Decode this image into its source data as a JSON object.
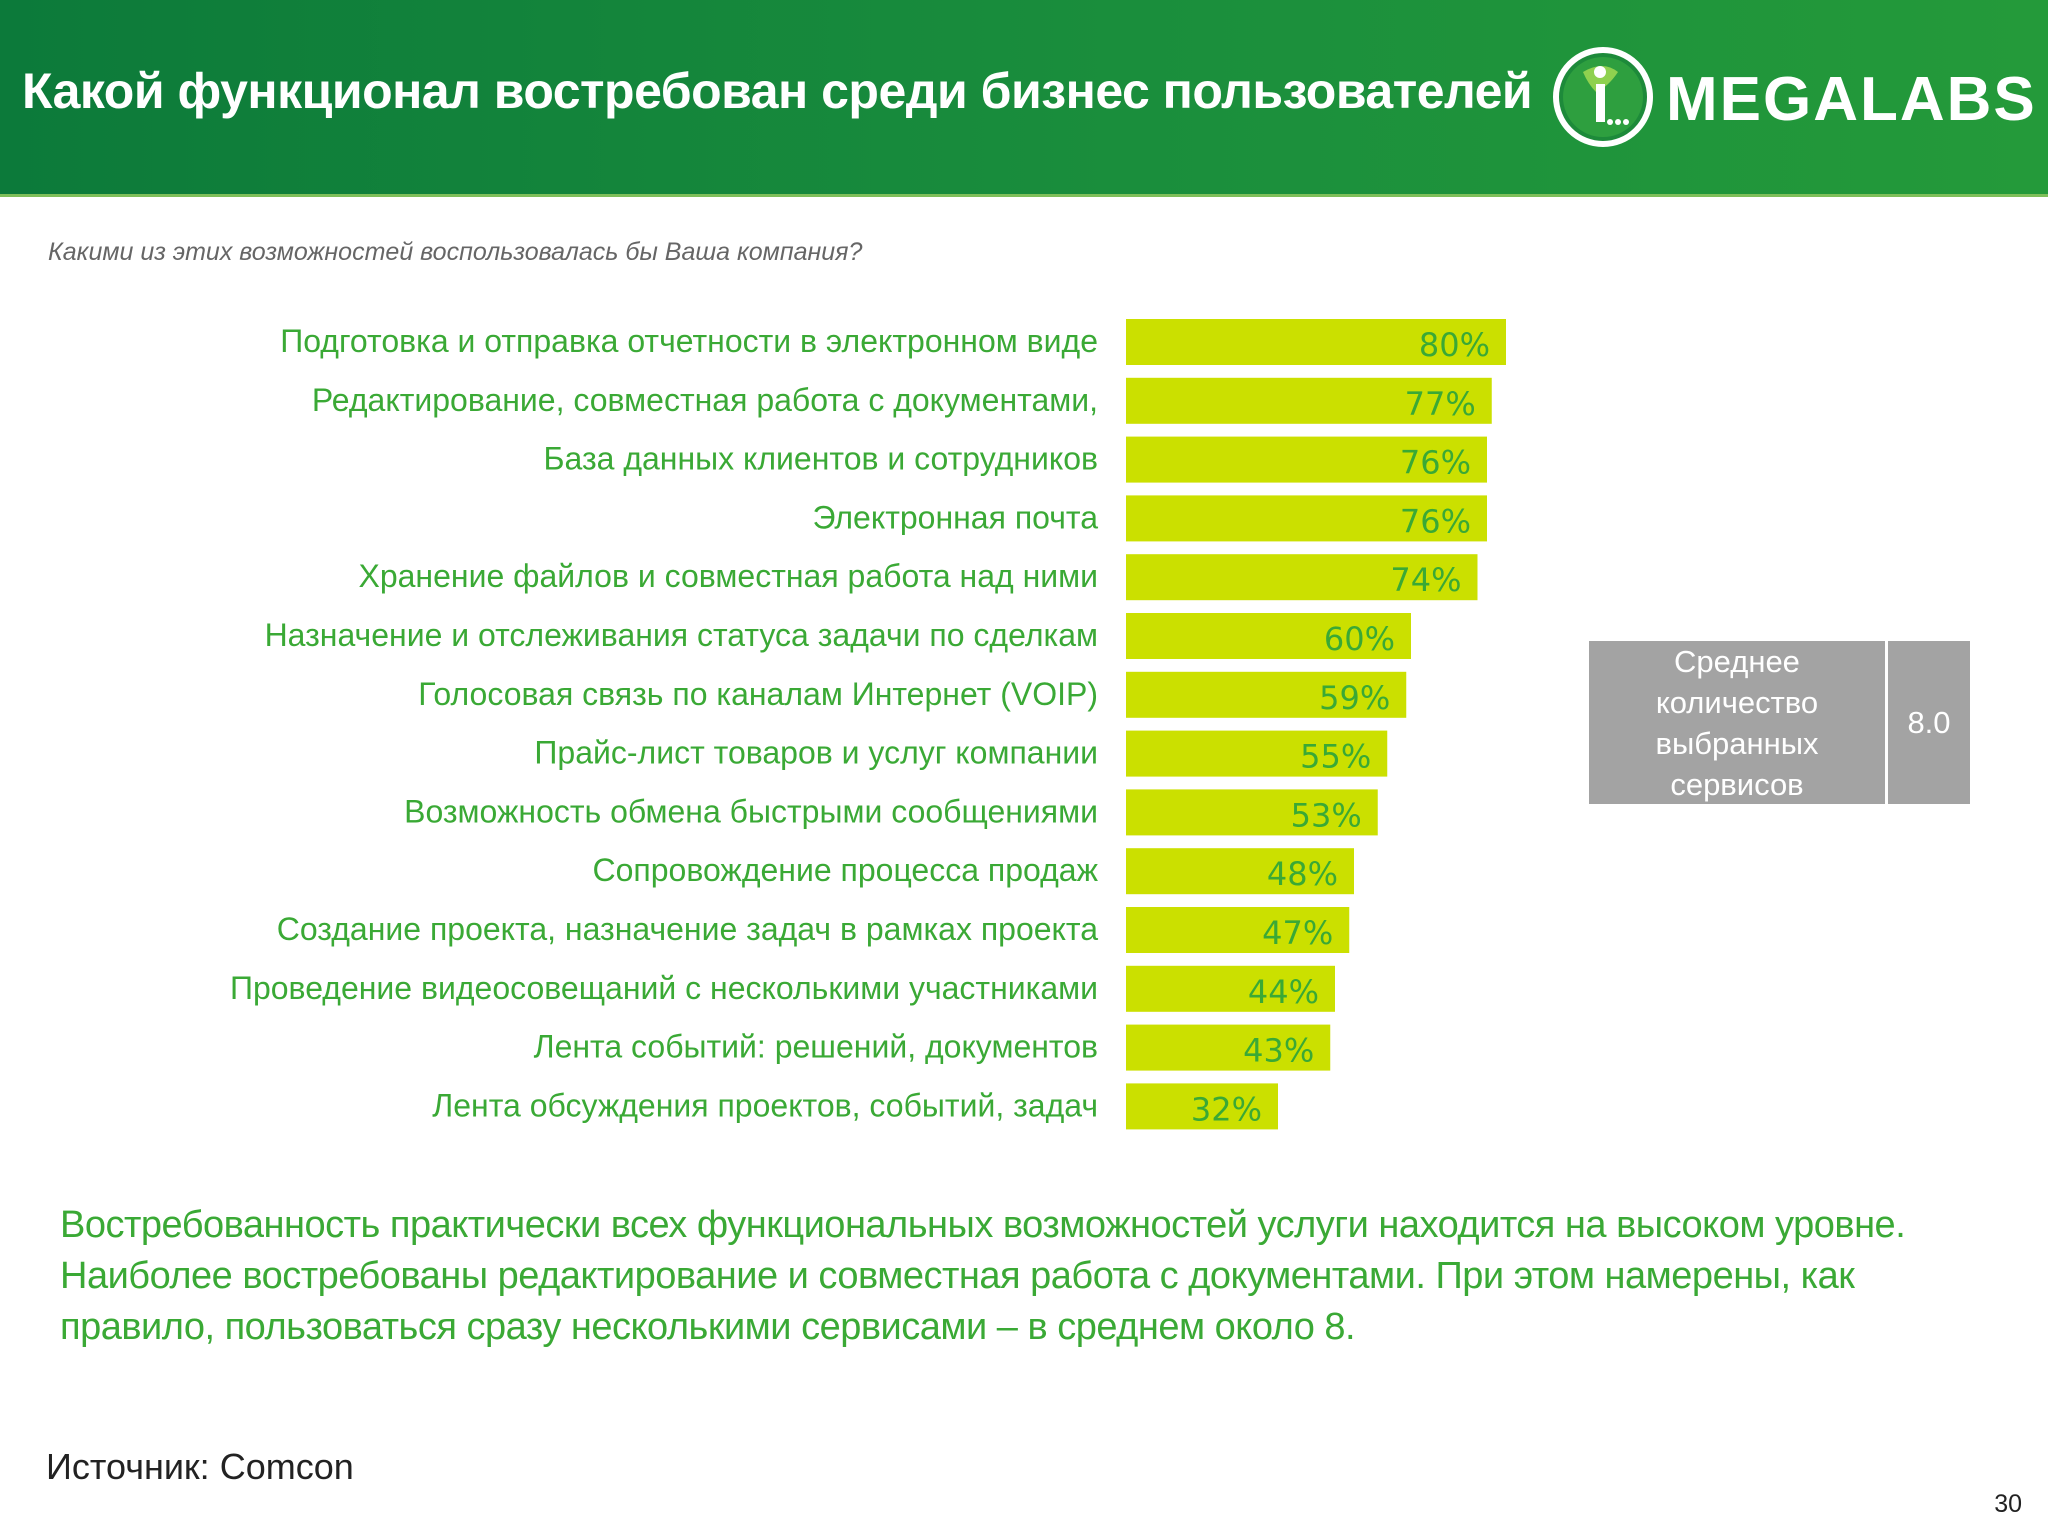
{
  "header": {
    "title": "Какой функционал востребован среди бизнес пользователей",
    "logo_text": "MEGALABS"
  },
  "subtitle": "Какими из этих возможностей воспользовалась бы Ваша компания?",
  "chart_data": {
    "type": "bar",
    "orientation": "horizontal",
    "categories": [
      "Подготовка и отправка отчетности в электронном виде",
      "Редактирование, совместная работа с документами,",
      "База данных клиентов и сотрудников",
      "Электронная почта",
      "Хранение файлов и совместная работа над ними",
      "Назначение и отслеживания статуса задачи по сделкам",
      "Голосовая связь по каналам Интернет (VOIP)",
      "Прайс-лист товаров и услуг компании",
      "Возможность обмена быстрыми сообщениями",
      "Сопровождение процесса продаж",
      "Создание проекта, назначение задач в рамках проекта",
      "Проведение видеосовещаний с несколькими участниками",
      "Лента событий: решений, документов",
      "Лента обсуждения проектов, событий, задач"
    ],
    "values": [
      80,
      77,
      76,
      76,
      74,
      60,
      59,
      55,
      53,
      48,
      47,
      44,
      43,
      32
    ],
    "value_labels": [
      "80%",
      "77%",
      "76%",
      "76%",
      "74%",
      "60%",
      "59%",
      "55%",
      "53%",
      "48%",
      "47%",
      "44%",
      "43%",
      "32%"
    ],
    "unit": "%",
    "bar_color": "#cbe000",
    "label_color": "#3aa935",
    "xlim": [
      0,
      100
    ],
    "grid": false
  },
  "average_box": {
    "label_lines": [
      "Среднее",
      "количество",
      "выбранных",
      "сервисов"
    ],
    "value": "8.0"
  },
  "summary_lines": [
    "Востребованность практически всех функциональных возможностей услуги находится на высоком уровне.",
    "Наиболее востребованы редактирование и совместная работа с документами. При этом намерены, как",
    "правило, пользоваться сразу несколькими сервисами – в среднем около 8."
  ],
  "source": "Источник: Comcon",
  "page_number": "30",
  "colors": {
    "header_green": "#1a8e3c",
    "accent_green": "#3aa935",
    "bar_lime": "#cbe000",
    "box_gray": "#a3a3a3"
  }
}
